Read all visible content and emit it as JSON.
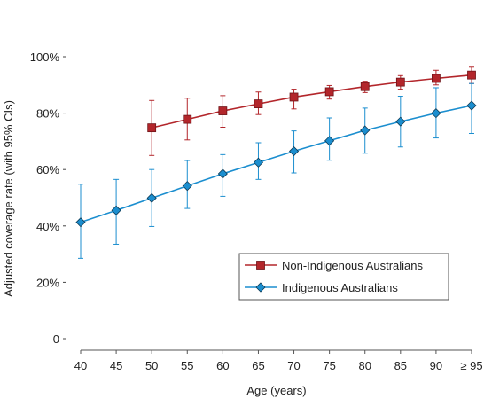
{
  "chart_data": {
    "type": "line",
    "xlabel": "Age (years)",
    "ylabel": "Adjusted coverage rate (with 95% CIs)",
    "categories": [
      "40",
      "45",
      "50",
      "55",
      "60",
      "65",
      "70",
      "75",
      "80",
      "85",
      "90",
      "≥ 95"
    ],
    "y_ticks": [
      "0",
      "20%",
      "40%",
      "60%",
      "80%",
      "100%"
    ],
    "ylim": [
      0,
      100
    ],
    "grid": false,
    "legend_placement": "lower-right",
    "series": [
      {
        "name": "Non-Indigenous Australians",
        "color": "#b3262b",
        "marker": "square",
        "values": [
          null,
          null,
          74.8,
          77.8,
          80.8,
          83.3,
          85.7,
          87.6,
          89.4,
          91.0,
          92.3,
          93.5
        ],
        "ci_low": [
          null,
          null,
          65.0,
          70.5,
          75.0,
          79.5,
          81.5,
          85.0,
          87.3,
          88.5,
          90.0,
          90.5
        ],
        "ci_high": [
          null,
          null,
          84.5,
          85.3,
          86.2,
          87.5,
          88.5,
          89.8,
          91.3,
          93.3,
          95.2,
          96.3
        ]
      },
      {
        "name": "Indigenous Australians",
        "color": "#1b8ecf",
        "marker": "diamond",
        "values": [
          41.3,
          45.5,
          49.9,
          54.2,
          58.5,
          62.5,
          66.5,
          70.2,
          73.9,
          77.0,
          80.0,
          82.7
        ],
        "ci_low": [
          28.5,
          33.5,
          39.8,
          46.2,
          50.5,
          56.5,
          58.8,
          63.3,
          65.8,
          68.0,
          71.2,
          72.8
        ],
        "ci_high": [
          54.8,
          56.5,
          60.0,
          63.2,
          65.3,
          69.5,
          73.7,
          78.3,
          81.8,
          86.0,
          89.0,
          90.5
        ]
      }
    ]
  }
}
